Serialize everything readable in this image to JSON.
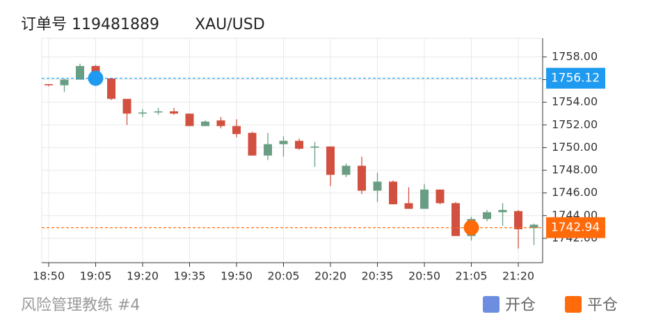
{
  "header": {
    "title": "订单号 119481889",
    "symbol": "XAU/USD"
  },
  "footer": {
    "caption": "风险管理教练 #4"
  },
  "chart_data": {
    "type": "candlestick",
    "categories": [
      "18:50",
      null,
      null,
      "19:05",
      null,
      null,
      "19:20",
      null,
      null,
      "19:35",
      null,
      null,
      "19:50",
      null,
      null,
      "20:05",
      null,
      null,
      "20:20",
      null,
      null,
      "20:35",
      null,
      null,
      "20:50",
      null,
      null,
      "21:05",
      null,
      null,
      "21:20",
      null
    ],
    "open": [
      1755.6,
      1755.5,
      1756.0,
      1757.2,
      1756.1,
      1754.3,
      1753.0,
      1753.1,
      1753.2,
      1753.0,
      1751.9,
      1752.4,
      1751.9,
      1751.3,
      1749.3,
      1750.3,
      1750.6,
      1750.0,
      1750.1,
      1747.6,
      1748.4,
      1746.2,
      1747.0,
      1745.1,
      1744.6,
      1746.3,
      1745.1,
      1742.2,
      1743.7,
      1744.3,
      1744.4,
      1742.9
    ],
    "high": [
      1755.6,
      1756.1,
      1757.4,
      1757.3,
      1756.1,
      1754.3,
      1753.4,
      1753.5,
      1753.5,
      1753.0,
      1752.4,
      1752.7,
      1752.5,
      1751.4,
      1751.3,
      1751.0,
      1750.8,
      1750.5,
      1750.1,
      1748.6,
      1749.2,
      1747.8,
      1747.1,
      1746.5,
      1746.8,
      1746.3,
      1745.2,
      1743.9,
      1744.5,
      1745.1,
      1744.5,
      1743.3
    ],
    "low": [
      1755.4,
      1754.9,
      1756.0,
      1756.0,
      1754.2,
      1752.0,
      1752.7,
      1752.9,
      1752.9,
      1751.9,
      1751.9,
      1751.7,
      1750.9,
      1749.3,
      1748.9,
      1749.2,
      1749.8,
      1748.3,
      1746.6,
      1747.4,
      1745.9,
      1745.2,
      1745.0,
      1744.6,
      1744.6,
      1745.0,
      1742.2,
      1741.8,
      1743.5,
      1743.1,
      1741.1,
      1741.4
    ],
    "close": [
      1755.5,
      1756.0,
      1757.2,
      1756.0,
      1754.3,
      1753.0,
      1753.1,
      1753.2,
      1753.0,
      1751.9,
      1752.3,
      1751.9,
      1751.2,
      1749.3,
      1750.3,
      1750.6,
      1749.9,
      1750.1,
      1747.6,
      1748.4,
      1746.2,
      1747.0,
      1745.0,
      1744.6,
      1746.3,
      1745.1,
      1742.2,
      1743.7,
      1744.3,
      1744.5,
      1742.8,
      1743.2
    ],
    "up_color": "#6a9e84",
    "down_color": "#d2503f",
    "ylim": [
      1739.85,
      1759.65
    ],
    "yticks": [
      {
        "value": 1742,
        "label": "1742.00"
      },
      {
        "value": 1744,
        "label": "1744.00"
      },
      {
        "value": 1746,
        "label": "1746.00"
      },
      {
        "value": 1748,
        "label": "1748.00"
      },
      {
        "value": 1750,
        "label": "1750.00"
      },
      {
        "value": 1752,
        "label": "1752.00"
      },
      {
        "value": 1754,
        "label": "1754.00"
      },
      {
        "value": 1756,
        "label": "1756.00"
      },
      {
        "value": 1758,
        "label": "1758.00"
      }
    ],
    "grid": true,
    "trades": [
      {
        "name": "开仓",
        "x": "19:05",
        "value": 1756.12,
        "color": "#1e9bf0",
        "legend_color": "#6d8ee0"
      },
      {
        "name": "平仓",
        "x": "21:05",
        "value": 1742.94,
        "color": "#ff6a0a",
        "legend_color": "#ff6a0a"
      }
    ]
  }
}
